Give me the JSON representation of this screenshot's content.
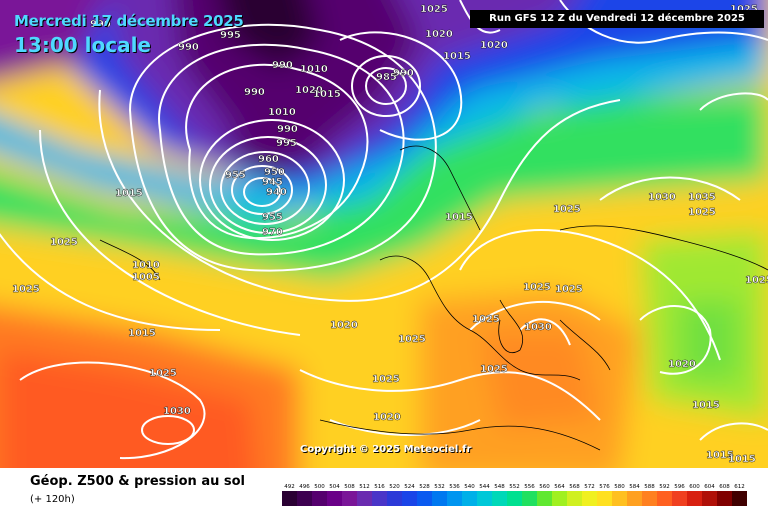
{
  "header": {
    "date_line": "Mercredi 17 décembre 2025",
    "time_line": "13:00 locale",
    "run_info": "Run GFS 12 Z du Vendredi 12 décembre 2025"
  },
  "copyright": "Copyright © 2025 Meteociel.fr",
  "footer": {
    "title": "Géop. Z500 & pression au sol",
    "lead_time": "(+ 120h)"
  },
  "scale": {
    "ticks": [
      "492",
      "496",
      "500",
      "504",
      "508",
      "512",
      "516",
      "520",
      "524",
      "528",
      "532",
      "536",
      "540",
      "544",
      "548",
      "552",
      "556",
      "560",
      "564",
      "568",
      "572",
      "576",
      "580",
      "584",
      "588",
      "592",
      "596",
      "600",
      "604",
      "608",
      "612"
    ],
    "colors": [
      "#2a0033",
      "#3d0050",
      "#55006e",
      "#6a0088",
      "#7a1598",
      "#6a2bb0",
      "#4a35c8",
      "#2c3ad8",
      "#1a45e8",
      "#0a5af0",
      "#0078f0",
      "#0095f0",
      "#00b0e8",
      "#00c8d8",
      "#00d8b8",
      "#00e090",
      "#20e060",
      "#60e830",
      "#a0f020",
      "#d0f020",
      "#f0f020",
      "#ffe020",
      "#ffc020",
      "#ffa020",
      "#ff8020",
      "#ff6020",
      "#f04020",
      "#d82010",
      "#b01008",
      "#800000",
      "#400000"
    ]
  },
  "isobar_labels": [
    {
      "text": "990"
    },
    {
      "text": "990"
    },
    {
      "text": "995"
    },
    {
      "text": "1025"
    },
    {
      "text": "1020"
    },
    {
      "text": "1015"
    },
    {
      "text": "1020"
    },
    {
      "text": "1025"
    },
    {
      "text": "990"
    },
    {
      "text": "1010"
    },
    {
      "text": "990"
    },
    {
      "text": "1020"
    },
    {
      "text": "1015"
    },
    {
      "text": "985"
    },
    {
      "text": "990"
    },
    {
      "text": "1010"
    },
    {
      "text": "990"
    },
    {
      "text": "995"
    },
    {
      "text": "960"
    },
    {
      "text": "955"
    },
    {
      "text": "950"
    },
    {
      "text": "945"
    },
    {
      "text": "940"
    },
    {
      "text": "955"
    },
    {
      "text": "970"
    },
    {
      "text": "1015"
    },
    {
      "text": "1015"
    },
    {
      "text": "1025"
    },
    {
      "text": "1030"
    },
    {
      "text": "1035"
    },
    {
      "text": "1025"
    },
    {
      "text": "1025"
    },
    {
      "text": "1010"
    },
    {
      "text": "1005"
    },
    {
      "text": "1025"
    },
    {
      "text": "1015"
    },
    {
      "text": "1020"
    },
    {
      "text": "1025"
    },
    {
      "text": "1025"
    },
    {
      "text": "1030"
    },
    {
      "text": "1025"
    },
    {
      "text": "1025"
    },
    {
      "text": "1025"
    },
    {
      "text": "1020"
    },
    {
      "text": "1025"
    },
    {
      "text": "1030"
    },
    {
      "text": "1020"
    },
    {
      "text": "1015"
    },
    {
      "text": "1015"
    },
    {
      "text": "1015"
    },
    {
      "text": "1025"
    },
    {
      "text": "1025"
    }
  ]
}
